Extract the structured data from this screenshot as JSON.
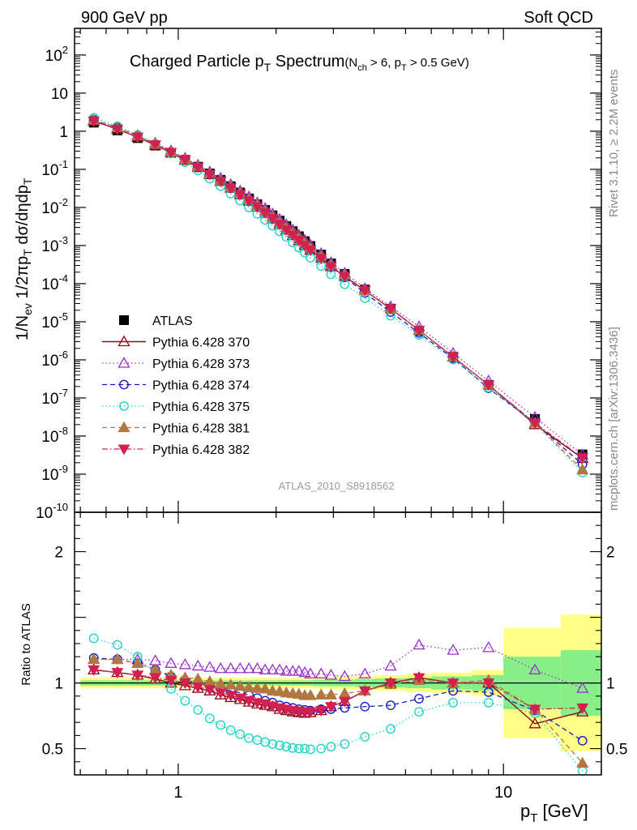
{
  "header": {
    "left": "900 GeV pp",
    "right": "Soft QCD"
  },
  "title": {
    "main": "Charged Particle p",
    "main_sub": "T",
    "main_tail": " Spectrum",
    "cond_open": "(N",
    "cond_sub1": "ch",
    "cond_mid": " > 6, p",
    "cond_sub2": "T",
    "cond_tail": " > 0.5 GeV)"
  },
  "side_labels": {
    "rivet": "Rivet 3.1.10, ≥ 2.2M events",
    "mcplots": "mcplots.cern.ch [arXiv:1306.3436]"
  },
  "analysis_id": "ATLAS_2010_S8918562",
  "axes": {
    "ylabel_top": "1/N_ev 1/2πp_T dσ/dηdp_T",
    "ylabel_bottom": "Ratio to ATLAS",
    "xlabel": "p_T  [GeV]",
    "x_ticks": [
      "1",
      "10"
    ],
    "y_ticks_top": [
      "10^2",
      "10",
      "1",
      "10^-1",
      "10^-2",
      "10^-3",
      "10^-4",
      "10^-5",
      "10^-6",
      "10^-7",
      "10^-8",
      "10^-9",
      "10^-10"
    ],
    "y_ticks_bottom": [
      "2",
      "1",
      "0.5"
    ]
  },
  "chart_data": [
    {
      "type": "scatter",
      "panel": "spectrum",
      "xscale": "log",
      "yscale": "log",
      "xlim": [
        0.48,
        20
      ],
      "ylim": [
        1e-10,
        500
      ],
      "x": [
        0.55,
        0.65,
        0.75,
        0.85,
        0.95,
        1.05,
        1.15,
        1.25,
        1.35,
        1.45,
        1.55,
        1.65,
        1.75,
        1.85,
        1.95,
        2.05,
        2.15,
        2.25,
        2.35,
        2.45,
        2.55,
        2.75,
        2.95,
        3.25,
        3.75,
        4.5,
        5.5,
        7.0,
        9.0,
        12.5,
        17.5
      ],
      "series": [
        {
          "name": "ATLAS",
          "color": "#000000",
          "marker": "square",
          "values": [
            1.68,
            1.05,
            0.66,
            0.42,
            0.272,
            0.177,
            0.117,
            0.078,
            0.053,
            0.036,
            0.0247,
            0.0172,
            0.0121,
            0.0086,
            0.0062,
            0.0045,
            0.00325,
            0.00238,
            0.00175,
            0.0013,
            0.00097,
            0.00058,
            0.00034,
            0.00018,
            7e-05,
            2.2e-05,
            5.8e-06,
            1.2e-06,
            2.2e-07,
            2.8e-08,
            3.3e-09
          ]
        },
        {
          "name": "Pythia 6.428 370",
          "color": "#8b0a1a",
          "marker": "triangle-open",
          "values": [
            1.85,
            1.13,
            0.7,
            0.43,
            0.273,
            0.174,
            0.112,
            0.073,
            0.048,
            0.032,
            0.0216,
            0.0147,
            0.0102,
            0.0071,
            0.005,
            0.00358,
            0.00256,
            0.00185,
            0.00135,
            0.001,
            0.00075,
            0.00046,
            0.00028,
            0.000155,
            6.6e-05,
            2.2e-05,
            6e-06,
            1.2e-06,
            2.2e-07,
            2e-08,
            2.6e-09
          ]
        },
        {
          "name": "Pythia 6.428 373",
          "color": "#9930cc",
          "marker": "triangle-open",
          "values": [
            1.98,
            1.24,
            0.78,
            0.49,
            0.31,
            0.198,
            0.13,
            0.086,
            0.059,
            0.04,
            0.0274,
            0.0191,
            0.0134,
            0.0095,
            0.0068,
            0.0049,
            0.00355,
            0.0026,
            0.0019,
            0.0014,
            0.00104,
            0.00062,
            0.00036,
            0.00019,
            7.5e-05,
            2.5e-05,
            7.5e-06,
            1.5e-06,
            2.8e-07,
            3.1e-08,
            3.2e-09
          ]
        },
        {
          "name": "Pythia 6.428 374",
          "color": "#1a1acc",
          "marker": "circle-open",
          "values": [
            2.0,
            1.24,
            0.76,
            0.46,
            0.286,
            0.181,
            0.117,
            0.076,
            0.0505,
            0.034,
            0.0228,
            0.0155,
            0.0107,
            0.0074,
            0.0052,
            0.0037,
            0.00265,
            0.0019,
            0.00138,
            0.00102,
            0.00076,
            0.00046,
            0.00027,
            0.000146,
            5.7e-05,
            1.8e-05,
            5.1e-06,
            1.1e-06,
            1.8e-07,
            2.2e-08,
            1.8e-09
          ]
        },
        {
          "name": "Pythia 6.428 375",
          "color": "#1fd4c4",
          "marker": "circle-open",
          "values": [
            2.25,
            1.35,
            0.79,
            0.45,
            0.26,
            0.153,
            0.093,
            0.057,
            0.036,
            0.023,
            0.0151,
            0.01,
            0.0068,
            0.0047,
            0.0033,
            0.00235,
            0.00168,
            0.0012,
            0.00088,
            0.00065,
            0.00048,
            0.00029,
            0.000175,
            9.65e-05,
            4.15e-05,
            1.44e-05,
            4.5e-06,
            1.02e-06,
            1.87e-07,
            2.2e-08,
            1.1e-09
          ]
        },
        {
          "name": "Pythia 6.428 381",
          "color": "#b07840",
          "marker": "triangle-filled",
          "values": [
            1.98,
            1.24,
            0.76,
            0.46,
            0.289,
            0.184,
            0.12,
            0.079,
            0.0527,
            0.0355,
            0.0241,
            0.0166,
            0.0116,
            0.0082,
            0.0058,
            0.0042,
            0.003,
            0.0022,
            0.0016,
            0.00118,
            0.00088,
            0.00053,
            0.00031,
            0.00017,
            6.6e-05,
            2.2e-05,
            6e-06,
            1.2e-06,
            2.2e-07,
            2.2e-08,
            1.3e-09
          ]
        },
        {
          "name": "Pythia 6.428 382",
          "color": "#d42050",
          "marker": "triangle-down-filled",
          "values": [
            1.85,
            1.13,
            0.7,
            0.44,
            0.278,
            0.177,
            0.114,
            0.074,
            0.049,
            0.0327,
            0.0219,
            0.0149,
            0.0103,
            0.0072,
            0.0051,
            0.0036,
            0.0026,
            0.00188,
            0.00138,
            0.00101,
            0.00076,
            0.00046,
            0.00028,
            0.000155,
            6.6e-05,
            2.2e-05,
            6e-06,
            1.2e-06,
            2.2e-07,
            2.2e-08,
            2.7e-09
          ]
        }
      ]
    },
    {
      "type": "scatter",
      "panel": "ratio",
      "xscale": "log",
      "xlim": [
        0.48,
        20
      ],
      "ylim": [
        0.3,
        2.3
      ],
      "ylabel": "Ratio to ATLAS",
      "x": [
        0.55,
        0.65,
        0.75,
        0.85,
        0.95,
        1.05,
        1.15,
        1.25,
        1.35,
        1.45,
        1.55,
        1.65,
        1.75,
        1.85,
        1.95,
        2.05,
        2.15,
        2.25,
        2.35,
        2.45,
        2.55,
        2.75,
        2.95,
        3.25,
        3.75,
        4.5,
        5.5,
        7.0,
        9.0,
        12.5,
        17.5
      ],
      "bins": [
        0.5,
        0.6,
        0.7,
        0.8,
        0.9,
        1.0,
        1.1,
        1.2,
        1.3,
        1.4,
        1.5,
        1.6,
        1.7,
        1.8,
        1.9,
        2.0,
        2.1,
        2.2,
        2.3,
        2.4,
        2.5,
        2.6,
        2.9,
        3.0,
        3.5,
        4.0,
        5.0,
        6.0,
        8.0,
        10.0,
        15.0,
        20.0
      ],
      "band_inner": [
        0.02,
        0.02,
        0.02,
        0.02,
        0.02,
        0.02,
        0.02,
        0.02,
        0.02,
        0.02,
        0.02,
        0.02,
        0.02,
        0.02,
        0.02,
        0.02,
        0.02,
        0.02,
        0.02,
        0.02,
        0.02,
        0.025,
        0.025,
        0.025,
        0.03,
        0.035,
        0.04,
        0.05,
        0.06,
        0.2,
        0.25
      ],
      "band_outer": [
        0.04,
        0.04,
        0.04,
        0.04,
        0.04,
        0.04,
        0.04,
        0.04,
        0.04,
        0.04,
        0.04,
        0.04,
        0.04,
        0.04,
        0.04,
        0.04,
        0.04,
        0.04,
        0.04,
        0.04,
        0.04,
        0.045,
        0.045,
        0.05,
        0.05,
        0.06,
        0.07,
        0.08,
        0.1,
        0.42,
        0.52
      ],
      "series": [
        {
          "name": "Pythia 6.428 370",
          "values": [
            1.1,
            1.08,
            1.06,
            1.03,
            1.0,
            0.98,
            0.96,
            0.94,
            0.91,
            0.89,
            0.875,
            0.855,
            0.84,
            0.83,
            0.82,
            0.8,
            0.79,
            0.78,
            0.775,
            0.77,
            0.775,
            0.79,
            0.82,
            0.86,
            0.94,
            1.0,
            1.04,
            1.0,
            1.0,
            0.69,
            0.78
          ]
        },
        {
          "name": "Pythia 6.428 373",
          "values": [
            1.18,
            1.18,
            1.18,
            1.17,
            1.15,
            1.14,
            1.13,
            1.12,
            1.11,
            1.11,
            1.11,
            1.11,
            1.11,
            1.1,
            1.1,
            1.1,
            1.09,
            1.09,
            1.09,
            1.08,
            1.07,
            1.07,
            1.06,
            1.05,
            1.07,
            1.13,
            1.29,
            1.25,
            1.27,
            1.1,
            0.96
          ]
        },
        {
          "name": "Pythia 6.428 374",
          "values": [
            1.19,
            1.18,
            1.15,
            1.1,
            1.05,
            1.02,
            1.0,
            0.975,
            0.955,
            0.94,
            0.925,
            0.905,
            0.885,
            0.865,
            0.85,
            0.83,
            0.82,
            0.81,
            0.8,
            0.795,
            0.79,
            0.8,
            0.8,
            0.81,
            0.82,
            0.83,
            0.88,
            0.94,
            0.93,
            0.79,
            0.56
          ]
        },
        {
          "name": "Pythia 6.428 375",
          "values": [
            1.34,
            1.29,
            1.2,
            1.07,
            0.955,
            0.865,
            0.795,
            0.73,
            0.68,
            0.64,
            0.61,
            0.58,
            0.565,
            0.55,
            0.535,
            0.525,
            0.515,
            0.505,
            0.5,
            0.5,
            0.495,
            0.5,
            0.515,
            0.535,
            0.59,
            0.65,
            0.78,
            0.85,
            0.85,
            0.77,
            0.33
          ]
        },
        {
          "name": "Pythia 6.428 381",
          "values": [
            1.18,
            1.18,
            1.15,
            1.1,
            1.06,
            1.04,
            1.03,
            1.01,
            0.995,
            0.985,
            0.975,
            0.965,
            0.96,
            0.955,
            0.94,
            0.935,
            0.925,
            0.92,
            0.915,
            0.905,
            0.905,
            0.91,
            0.91,
            0.92,
            0.94,
            0.99,
            1.02,
            1.0,
            1.02,
            0.8,
            0.39
          ]
        },
        {
          "name": "Pythia 6.428 382",
          "values": [
            1.1,
            1.08,
            1.06,
            1.04,
            1.02,
            1.0,
            0.97,
            0.95,
            0.925,
            0.905,
            0.885,
            0.865,
            0.85,
            0.84,
            0.825,
            0.81,
            0.8,
            0.79,
            0.785,
            0.78,
            0.78,
            0.79,
            0.82,
            0.86,
            0.94,
            1.0,
            1.04,
            1.0,
            1.0,
            0.8,
            0.81
          ]
        }
      ]
    }
  ]
}
